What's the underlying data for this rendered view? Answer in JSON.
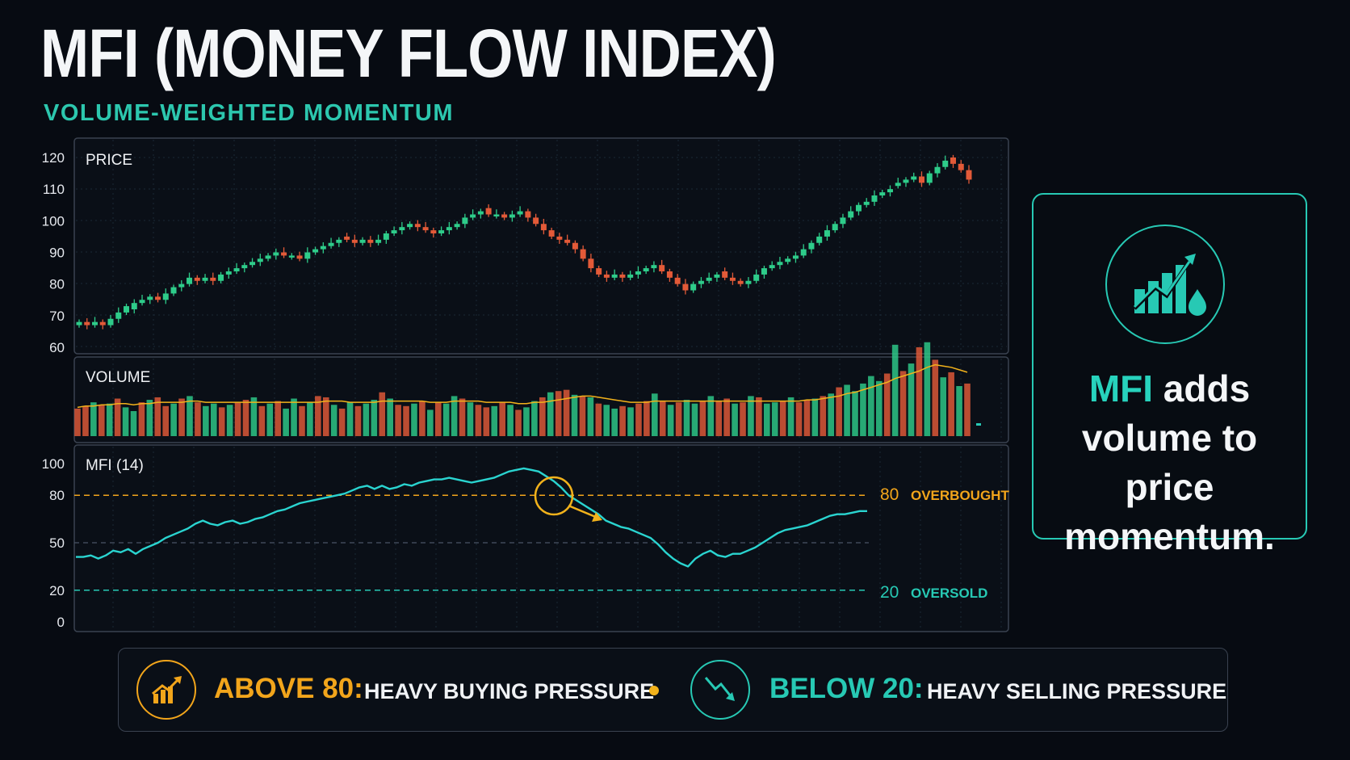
{
  "header": {
    "title": "MFI (MONEY FLOW INDEX)",
    "subtitle": "VOLUME-WEIGHTED MOMENTUM"
  },
  "colors": {
    "up": "#2ecc8a",
    "down": "#e35a38",
    "mfi_line": "#2ad4d0",
    "overbought": "#f2a51b",
    "oversold": "#27c9b4",
    "accent": "#27d3bd",
    "volume_ma": "#f2b21b"
  },
  "chart_data": [
    {
      "type": "candlestick",
      "label": "PRICE",
      "ylim": [
        60,
        120
      ],
      "yticks": [
        60,
        70,
        80,
        90,
        100,
        110,
        120
      ],
      "close": [
        68,
        67,
        68,
        67,
        69,
        71,
        73,
        74,
        75,
        76,
        75,
        77,
        79,
        80,
        82,
        81,
        82,
        81,
        83,
        84,
        85,
        86,
        87,
        88,
        89,
        90,
        89,
        89,
        88,
        90,
        91,
        92,
        93,
        94,
        94,
        93,
        94,
        93,
        94,
        96,
        97,
        98,
        99,
        98,
        97,
        96,
        97,
        98,
        99,
        101,
        102,
        103,
        102,
        102,
        101,
        102,
        103,
        101,
        99,
        97,
        95,
        94,
        93,
        91,
        88,
        85,
        83,
        82,
        83,
        82,
        83,
        84,
        85,
        86,
        84,
        82,
        80,
        78,
        80,
        81,
        82,
        83,
        82,
        81,
        80,
        81,
        83,
        85,
        86,
        87,
        88,
        89,
        91,
        93,
        95,
        97,
        99,
        101,
        103,
        105,
        106,
        108,
        109,
        110,
        112,
        113,
        114,
        112,
        115,
        117,
        119,
        118,
        116,
        113
      ],
      "open": [
        67,
        68,
        67,
        68,
        67,
        69,
        71,
        72,
        74,
        75,
        76,
        75,
        77,
        79,
        80,
        82,
        81,
        82,
        81,
        83,
        84,
        85,
        86,
        87,
        88,
        89,
        90,
        89,
        89,
        88,
        90,
        91,
        92,
        93,
        95,
        94,
        93,
        94,
        93,
        94,
        96,
        97,
        98,
        99,
        98,
        97,
        96,
        97,
        98,
        99,
        101,
        102,
        104,
        102,
        102,
        101,
        102,
        103,
        101,
        99,
        97,
        95,
        94,
        93,
        91,
        88,
        85,
        83,
        82,
        83,
        82,
        83,
        84,
        85,
        86,
        84,
        82,
        80,
        78,
        80,
        81,
        82,
        84,
        82,
        81,
        80,
        81,
        83,
        85,
        86,
        87,
        88,
        89,
        91,
        93,
        95,
        97,
        99,
        101,
        103,
        105,
        106,
        108,
        109,
        111,
        112,
        113,
        114,
        112,
        115,
        117,
        120,
        118,
        116
      ]
    },
    {
      "type": "bar",
      "label": "VOLUME",
      "values": [
        22,
        24,
        27,
        25,
        26,
        30,
        23,
        20,
        27,
        29,
        31,
        24,
        26,
        30,
        32,
        27,
        24,
        26,
        23,
        25,
        27,
        29,
        31,
        24,
        26,
        28,
        22,
        30,
        24,
        27,
        32,
        31,
        25,
        22,
        27,
        24,
        26,
        29,
        35,
        30,
        25,
        24,
        26,
        28,
        21,
        27,
        26,
        32,
        30,
        27,
        25,
        23,
        24,
        27,
        25,
        21,
        23,
        28,
        31,
        35,
        36,
        37,
        33,
        32,
        31,
        26,
        25,
        22,
        24,
        23,
        26,
        28,
        34,
        28,
        25,
        27,
        29,
        26,
        28,
        32,
        28,
        30,
        26,
        27,
        32,
        31,
        26,
        27,
        28,
        31,
        27,
        29,
        30,
        32,
        34,
        39,
        41,
        36,
        42,
        48,
        44,
        50,
        73,
        52,
        58,
        71,
        75,
        61,
        47,
        51,
        40,
        42
      ],
      "moving_average": [
        23,
        24,
        24,
        25,
        25,
        26,
        26,
        25,
        26,
        26,
        27,
        27,
        27,
        27,
        28,
        28,
        27,
        27,
        27,
        27,
        27,
        27,
        27,
        27,
        27,
        27,
        27,
        27,
        27,
        27,
        27,
        28,
        28,
        28,
        27,
        27,
        27,
        27,
        28,
        28,
        28,
        28,
        28,
        28,
        27,
        27,
        27,
        28,
        28,
        28,
        28,
        27,
        27,
        27,
        27,
        26,
        26,
        27,
        27,
        28,
        29,
        30,
        31,
        32,
        32,
        31,
        30,
        29,
        28,
        27,
        27,
        27,
        28,
        28,
        28,
        28,
        28,
        28,
        28,
        28,
        28,
        28,
        28,
        28,
        28,
        28,
        28,
        28,
        28,
        28,
        28,
        29,
        29,
        30,
        31,
        32,
        34,
        35,
        37,
        39,
        41,
        43,
        46,
        48,
        50,
        52,
        55,
        57,
        56,
        55,
        53,
        51
      ]
    },
    {
      "type": "line",
      "label": "MFI (14)",
      "ylim": [
        0,
        100
      ],
      "yticks": [
        0,
        20,
        50,
        80,
        100
      ],
      "values": [
        41,
        41,
        42,
        40,
        42,
        45,
        44,
        46,
        43,
        46,
        48,
        50,
        53,
        55,
        57,
        59,
        62,
        64,
        62,
        61,
        63,
        64,
        62,
        63,
        65,
        66,
        68,
        70,
        71,
        73,
        75,
        76,
        77,
        78,
        79,
        80,
        81,
        83,
        85,
        86,
        84,
        86,
        84,
        85,
        87,
        86,
        88,
        89,
        90,
        90,
        91,
        90,
        89,
        88,
        89,
        90,
        91,
        93,
        95,
        96,
        97,
        96,
        95,
        92,
        89,
        85,
        80,
        77,
        74,
        71,
        68,
        64,
        62,
        60,
        59,
        57,
        55,
        53,
        49,
        44,
        40,
        37,
        35,
        40,
        43,
        45,
        42,
        41,
        43,
        43,
        45,
        47,
        50,
        53,
        56,
        58,
        59,
        60,
        61,
        63,
        65,
        67,
        68,
        68,
        69,
        70,
        70
      ]
    }
  ],
  "panels": {
    "price_label": "PRICE",
    "volume_label": "VOLUME",
    "mfi_label": "MFI (14)",
    "ob_value": "80",
    "ob_label": "OVERBOUGHT",
    "os_value": "20",
    "os_label": "OVERSOLD"
  },
  "info_card": {
    "highlight": "MFI",
    "line1_rest": " adds",
    "line2": "volume to",
    "line3": "price momentum.",
    "icon": "chart-drop-icon"
  },
  "legend": {
    "above_key": "ABOVE 80:",
    "above_desc": "HEAVY BUYING PRESSURE",
    "above_icon": "trend-up-icon",
    "below_key": "BELOW 20:",
    "below_desc": "HEAVY SELLING PRESSURE",
    "below_icon": "trend-down-icon"
  }
}
